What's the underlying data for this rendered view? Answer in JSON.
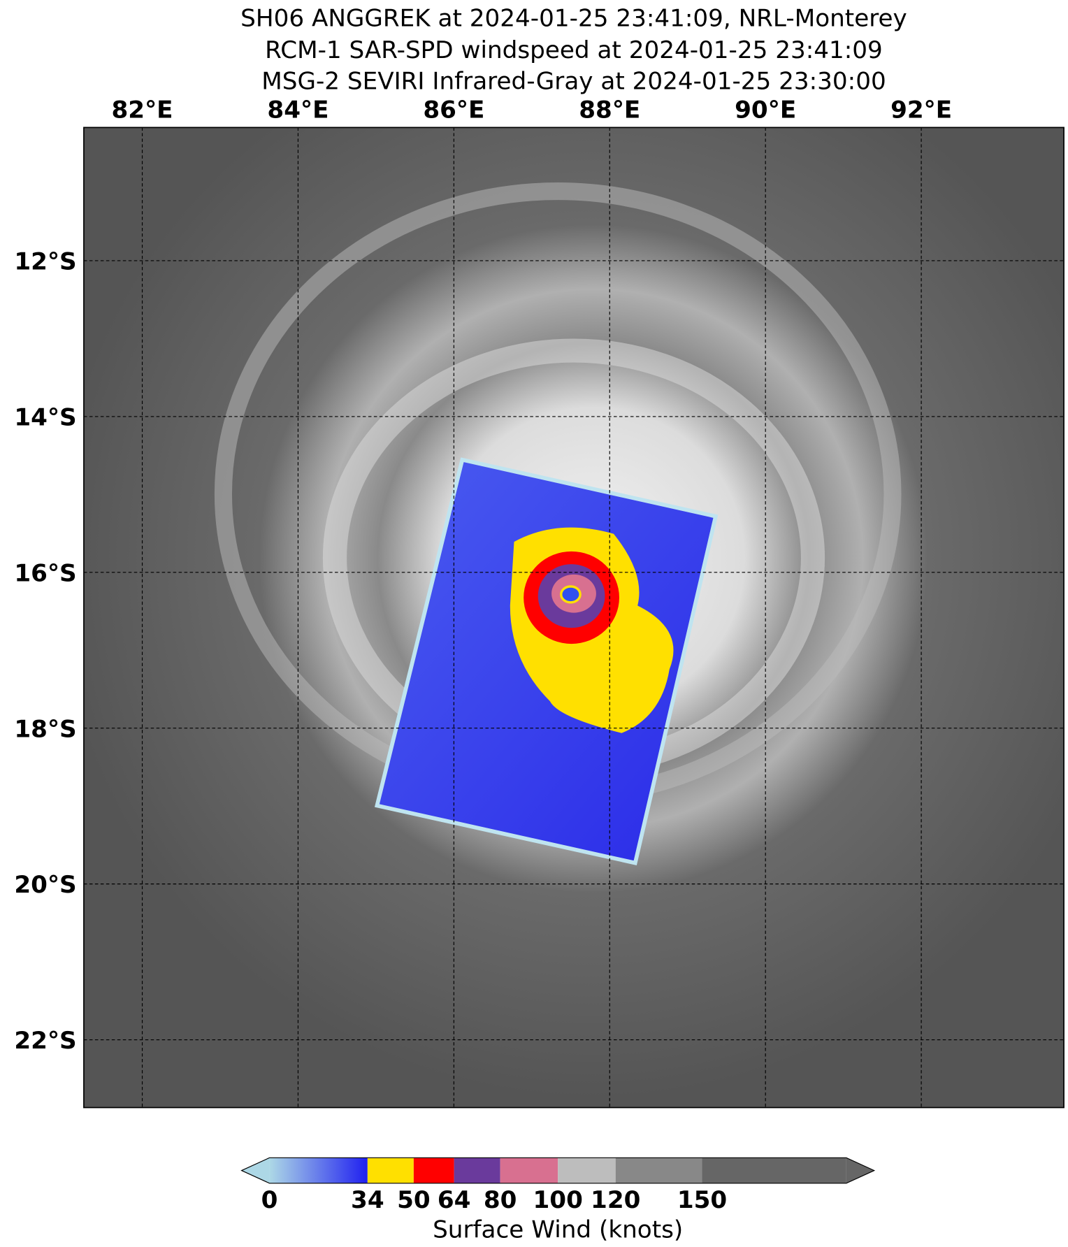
{
  "title": [
    "SH06 ANGGREK at 2024-01-25 23:41:09, NRL-Monterey",
    "RCM-1 SAR-SPD windspeed at 2024-01-25 23:41:09",
    "MSG-2 SEVIRI Infrared-Gray at 2024-01-25 23:30:00"
  ],
  "map": {
    "xlim": [
      81.25,
      93.83
    ],
    "ylim": [
      -10.29,
      -22.87
    ],
    "xticks": [
      {
        "value": 82,
        "label": "82°E"
      },
      {
        "value": 84,
        "label": "84°E"
      },
      {
        "value": 86,
        "label": "86°E"
      },
      {
        "value": 88,
        "label": "88°E"
      },
      {
        "value": 90,
        "label": "90°E"
      },
      {
        "value": 92,
        "label": "92°E"
      }
    ],
    "yticks": [
      {
        "value": -12,
        "label": "12°S"
      },
      {
        "value": -14,
        "label": "14°S"
      },
      {
        "value": -16,
        "label": "16°S"
      },
      {
        "value": -18,
        "label": "18°S"
      },
      {
        "value": -20,
        "label": "20°S"
      },
      {
        "value": -22,
        "label": "22°S"
      }
    ],
    "grid": true
  },
  "colorbar": {
    "label": "Surface Wind (knots)",
    "clim": [
      0,
      200
    ],
    "ticks": [
      0,
      34,
      50,
      64,
      80,
      100,
      120,
      150
    ],
    "colors": [
      "#3030f0",
      "#ffe000",
      "#ff0000",
      "#6a3a9c",
      "#d87090",
      "#bdbdbd",
      "#888888",
      "#666666"
    ],
    "extend_low_color": "#add8e6",
    "extend_high_color": "#666666"
  }
}
